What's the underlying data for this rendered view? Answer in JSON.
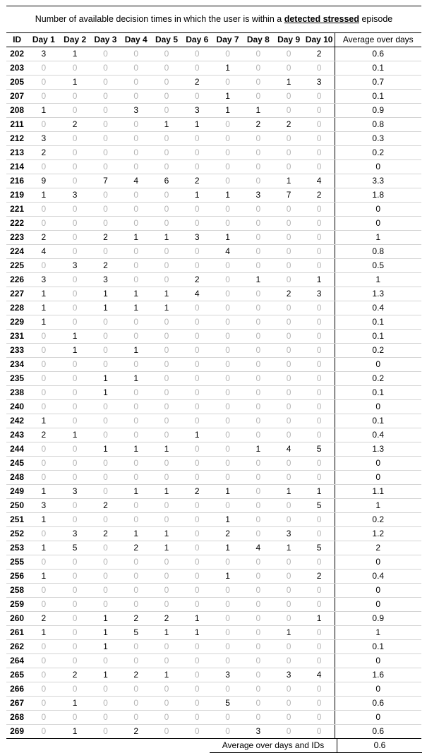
{
  "title": {
    "prefix": "Number of available decision times in which the user is within a ",
    "emphasis": "detected stressed",
    "suffix": " episode"
  },
  "headers": [
    "ID",
    "Day 1",
    "Day 2",
    "Day 3",
    "Day 4",
    "Day 5",
    "Day 6",
    "Day 7",
    "Day 8",
    "Day 9",
    "Day 10",
    "Average over days"
  ],
  "rows": [
    {
      "id": "202",
      "days": [
        3,
        1,
        0,
        0,
        0,
        0,
        0,
        0,
        0,
        2
      ],
      "avg": "0.6"
    },
    {
      "id": "203",
      "days": [
        0,
        0,
        0,
        0,
        0,
        0,
        1,
        0,
        0,
        0
      ],
      "avg": "0.1"
    },
    {
      "id": "205",
      "days": [
        0,
        1,
        0,
        0,
        0,
        2,
        0,
        0,
        1,
        3
      ],
      "avg": "0.7"
    },
    {
      "id": "207",
      "days": [
        0,
        0,
        0,
        0,
        0,
        0,
        1,
        0,
        0,
        0
      ],
      "avg": "0.1"
    },
    {
      "id": "208",
      "days": [
        1,
        0,
        0,
        3,
        0,
        3,
        1,
        1,
        0,
        0
      ],
      "avg": "0.9"
    },
    {
      "id": "211",
      "days": [
        0,
        2,
        0,
        0,
        1,
        1,
        0,
        2,
        2,
        0
      ],
      "avg": "0.8"
    },
    {
      "id": "212",
      "days": [
        3,
        0,
        0,
        0,
        0,
        0,
        0,
        0,
        0,
        0
      ],
      "avg": "0.3"
    },
    {
      "id": "213",
      "days": [
        2,
        0,
        0,
        0,
        0,
        0,
        0,
        0,
        0,
        0
      ],
      "avg": "0.2"
    },
    {
      "id": "214",
      "days": [
        0,
        0,
        0,
        0,
        0,
        0,
        0,
        0,
        0,
        0
      ],
      "avg": "0"
    },
    {
      "id": "216",
      "days": [
        9,
        0,
        7,
        4,
        6,
        2,
        0,
        0,
        1,
        4
      ],
      "avg": "3.3"
    },
    {
      "id": "219",
      "days": [
        1,
        3,
        0,
        0,
        0,
        1,
        1,
        3,
        7,
        2
      ],
      "avg": "1.8"
    },
    {
      "id": "221",
      "days": [
        0,
        0,
        0,
        0,
        0,
        0,
        0,
        0,
        0,
        0
      ],
      "avg": "0"
    },
    {
      "id": "222",
      "days": [
        0,
        0,
        0,
        0,
        0,
        0,
        0,
        0,
        0,
        0
      ],
      "avg": "0"
    },
    {
      "id": "223",
      "days": [
        2,
        0,
        2,
        1,
        1,
        3,
        1,
        0,
        0,
        0
      ],
      "avg": "1"
    },
    {
      "id": "224",
      "days": [
        4,
        0,
        0,
        0,
        0,
        0,
        4,
        0,
        0,
        0
      ],
      "avg": "0.8"
    },
    {
      "id": "225",
      "days": [
        0,
        3,
        2,
        0,
        0,
        0,
        0,
        0,
        0,
        0
      ],
      "avg": "0.5"
    },
    {
      "id": "226",
      "days": [
        3,
        0,
        3,
        0,
        0,
        2,
        0,
        1,
        0,
        1
      ],
      "avg": "1"
    },
    {
      "id": "227",
      "days": [
        1,
        0,
        1,
        1,
        1,
        4,
        0,
        0,
        2,
        3
      ],
      "avg": "1.3"
    },
    {
      "id": "228",
      "days": [
        1,
        0,
        1,
        1,
        1,
        0,
        0,
        0,
        0,
        0
      ],
      "avg": "0.4"
    },
    {
      "id": "229",
      "days": [
        1,
        0,
        0,
        0,
        0,
        0,
        0,
        0,
        0,
        0
      ],
      "avg": "0.1"
    },
    {
      "id": "231",
      "days": [
        0,
        1,
        0,
        0,
        0,
        0,
        0,
        0,
        0,
        0
      ],
      "avg": "0.1"
    },
    {
      "id": "233",
      "days": [
        0,
        1,
        0,
        1,
        0,
        0,
        0,
        0,
        0,
        0
      ],
      "avg": "0.2"
    },
    {
      "id": "234",
      "days": [
        0,
        0,
        0,
        0,
        0,
        0,
        0,
        0,
        0,
        0
      ],
      "avg": "0"
    },
    {
      "id": "235",
      "days": [
        0,
        0,
        1,
        1,
        0,
        0,
        0,
        0,
        0,
        0
      ],
      "avg": "0.2"
    },
    {
      "id": "238",
      "days": [
        0,
        0,
        1,
        0,
        0,
        0,
        0,
        0,
        0,
        0
      ],
      "avg": "0.1"
    },
    {
      "id": "240",
      "days": [
        0,
        0,
        0,
        0,
        0,
        0,
        0,
        0,
        0,
        0
      ],
      "avg": "0"
    },
    {
      "id": "242",
      "days": [
        1,
        0,
        0,
        0,
        0,
        0,
        0,
        0,
        0,
        0
      ],
      "avg": "0.1"
    },
    {
      "id": "243",
      "days": [
        2,
        1,
        0,
        0,
        0,
        1,
        0,
        0,
        0,
        0
      ],
      "avg": "0.4"
    },
    {
      "id": "244",
      "days": [
        0,
        0,
        1,
        1,
        1,
        0,
        0,
        1,
        4,
        5
      ],
      "avg": "1.3"
    },
    {
      "id": "245",
      "days": [
        0,
        0,
        0,
        0,
        0,
        0,
        0,
        0,
        0,
        0
      ],
      "avg": "0"
    },
    {
      "id": "248",
      "days": [
        0,
        0,
        0,
        0,
        0,
        0,
        0,
        0,
        0,
        0
      ],
      "avg": "0"
    },
    {
      "id": "249",
      "days": [
        1,
        3,
        0,
        1,
        1,
        2,
        1,
        0,
        1,
        1
      ],
      "avg": "1.1"
    },
    {
      "id": "250",
      "days": [
        3,
        0,
        2,
        0,
        0,
        0,
        0,
        0,
        0,
        5
      ],
      "avg": "1"
    },
    {
      "id": "251",
      "days": [
        1,
        0,
        0,
        0,
        0,
        0,
        1,
        0,
        0,
        0
      ],
      "avg": "0.2"
    },
    {
      "id": "252",
      "days": [
        0,
        3,
        2,
        1,
        1,
        0,
        2,
        0,
        3,
        0
      ],
      "avg": "1.2"
    },
    {
      "id": "253",
      "days": [
        1,
        5,
        0,
        2,
        1,
        0,
        1,
        4,
        1,
        5
      ],
      "avg": "2"
    },
    {
      "id": "255",
      "days": [
        0,
        0,
        0,
        0,
        0,
        0,
        0,
        0,
        0,
        0
      ],
      "avg": "0"
    },
    {
      "id": "256",
      "days": [
        1,
        0,
        0,
        0,
        0,
        0,
        1,
        0,
        0,
        2
      ],
      "avg": "0.4"
    },
    {
      "id": "258",
      "days": [
        0,
        0,
        0,
        0,
        0,
        0,
        0,
        0,
        0,
        0
      ],
      "avg": "0"
    },
    {
      "id": "259",
      "days": [
        0,
        0,
        0,
        0,
        0,
        0,
        0,
        0,
        0,
        0
      ],
      "avg": "0"
    },
    {
      "id": "260",
      "days": [
        2,
        0,
        1,
        2,
        2,
        1,
        0,
        0,
        0,
        1
      ],
      "avg": "0.9"
    },
    {
      "id": "261",
      "days": [
        1,
        0,
        1,
        5,
        1,
        1,
        0,
        0,
        1,
        0
      ],
      "avg": "1"
    },
    {
      "id": "262",
      "days": [
        0,
        0,
        1,
        0,
        0,
        0,
        0,
        0,
        0,
        0
      ],
      "avg": "0.1"
    },
    {
      "id": "264",
      "days": [
        0,
        0,
        0,
        0,
        0,
        0,
        0,
        0,
        0,
        0
      ],
      "avg": "0"
    },
    {
      "id": "265",
      "days": [
        0,
        2,
        1,
        2,
        1,
        0,
        3,
        0,
        3,
        4
      ],
      "avg": "1.6"
    },
    {
      "id": "266",
      "days": [
        0,
        0,
        0,
        0,
        0,
        0,
        0,
        0,
        0,
        0
      ],
      "avg": "0"
    },
    {
      "id": "267",
      "days": [
        0,
        1,
        0,
        0,
        0,
        0,
        5,
        0,
        0,
        0
      ],
      "avg": "0.6"
    },
    {
      "id": "268",
      "days": [
        0,
        0,
        0,
        0,
        0,
        0,
        0,
        0,
        0,
        0
      ],
      "avg": "0"
    },
    {
      "id": "269",
      "days": [
        0,
        1,
        0,
        2,
        0,
        0,
        0,
        3,
        0,
        0
      ],
      "avg": "0.6"
    }
  ],
  "footer": {
    "label": "Average over days and IDs",
    "value": "0.6"
  },
  "colors": {
    "zero_text": "#b5b5b5",
    "text": "#000000",
    "row_rule": "#d4d4d4"
  }
}
